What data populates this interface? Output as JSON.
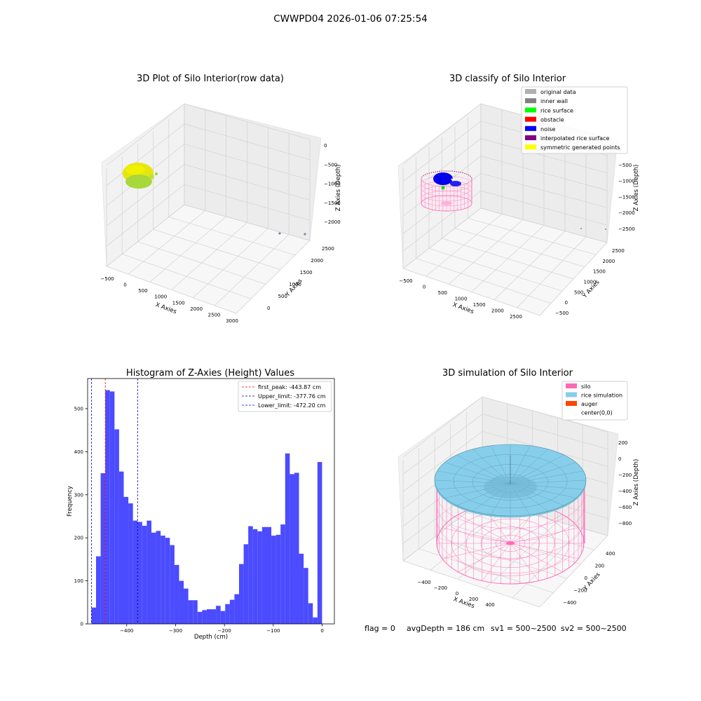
{
  "figure_title": "CWWPD04 2026-01-06 07:25:54",
  "status": {
    "flag": "flag = 0",
    "avg_depth": "avgDepth = 186 cm",
    "sv1": "sv1 = 500~2500",
    "sv2": "sv2 = 500~2500"
  },
  "colors": {
    "rice_yellow": "#e8e810",
    "rice_green": "#9ad43a",
    "noise_blue": "#0000ff",
    "silo_pink": "#ff69b4",
    "rice_sim": "#87ceeb",
    "auger": "#ff4500",
    "hist_bar": "#4b4bff"
  },
  "chart_data": [
    {
      "type": "scatter",
      "title": "3D Plot of Silo Interior(row data)",
      "xlabel": "X Axies",
      "ylabel": "Y Axies",
      "zlabel": "Z Axies (Depth)",
      "x_ticks": [
        "−500",
        "0",
        "500",
        "1000",
        "1500",
        "2000",
        "2500",
        "3000"
      ],
      "y_ticks": [
        "0",
        "500",
        "1000",
        "1500",
        "2000",
        "2500"
      ],
      "z_ticks": [
        "0",
        "−500",
        "−1000",
        "−1500",
        "−2000"
      ]
    },
    {
      "type": "scatter",
      "title": "3D classify of Silo Interior",
      "xlabel": "X Axies",
      "ylabel": "Y Axies",
      "zlabel": "Z Axies (Depth)",
      "x_ticks": [
        "−500",
        "0",
        "500",
        "1000",
        "1500",
        "2000",
        "2500"
      ],
      "y_ticks": [
        "−500",
        "0",
        "500",
        "1000",
        "1500",
        "2000",
        "2500"
      ],
      "z_ticks": [
        "0",
        "−500",
        "−1000",
        "−1500",
        "−2000",
        "−2500"
      ],
      "legend": [
        {
          "name": "original data",
          "color": "#b0b0b0"
        },
        {
          "name": "inner wall",
          "color": "#808080"
        },
        {
          "name": "rice surface",
          "color": "#00ff00"
        },
        {
          "name": "obstacle",
          "color": "#ff0000"
        },
        {
          "name": "noise",
          "color": "#0000ff"
        },
        {
          "name": "interpolated rice surface",
          "color": "#800080"
        },
        {
          "name": "symmetric generated points",
          "color": "#ffff00"
        }
      ],
      "legend_position": "upper-right"
    },
    {
      "type": "bar",
      "title": "Histogram of Z-Axies (Height) Values",
      "xlabel": "Depth (cm)",
      "ylabel": "Frequency",
      "xlim": [
        -480,
        25
      ],
      "ylim": [
        0,
        570
      ],
      "x_ticks": [
        -400,
        -300,
        -200,
        -100,
        0
      ],
      "y_ticks": [
        0,
        100,
        200,
        300,
        400,
        500
      ],
      "bin_start": -472.2,
      "bin_width": 9.44,
      "values": [
        38,
        157,
        350,
        543,
        540,
        452,
        354,
        295,
        280,
        240,
        237,
        228,
        240,
        212,
        216,
        205,
        200,
        183,
        137,
        100,
        82,
        55,
        55,
        28,
        32,
        34,
        34,
        42,
        30,
        46,
        56,
        69,
        139,
        185,
        227,
        220,
        215,
        225,
        225,
        205,
        207,
        231,
        396,
        348,
        351,
        163,
        130,
        48,
        15,
        376
      ],
      "lines": [
        {
          "name": "first_peak: -443.87 cm",
          "value": -443.87,
          "color": "#ff0000"
        },
        {
          "name": "Upper_limit: -377.76 cm",
          "value": -377.76,
          "color": "#00008b"
        },
        {
          "name": "Lower_limit: -472.20 cm",
          "value": -472.2,
          "color": "#0000ff"
        }
      ],
      "legend_position": "upper-right"
    },
    {
      "type": "surface",
      "title": "3D simulation of Silo Interior",
      "xlabel": "X Axies",
      "ylabel": "Y Axies",
      "zlabel": "Z Axies (Depth)",
      "x_ticks": [
        "−400",
        "−200",
        "0",
        "200",
        "400"
      ],
      "y_ticks": [
        "−400",
        "−200",
        "0",
        "200",
        "400"
      ],
      "z_ticks": [
        "200",
        "0",
        "−200",
        "−400",
        "−600",
        "−800"
      ],
      "legend": [
        {
          "name": "silo",
          "color": "#ff69b4"
        },
        {
          "name": "rice simulation",
          "color": "#87ceeb"
        },
        {
          "name": "auger",
          "color": "#ff4500"
        },
        {
          "name": "center(0,0)",
          "color": "#ffffff"
        }
      ],
      "legend_position": "upper-right"
    }
  ]
}
